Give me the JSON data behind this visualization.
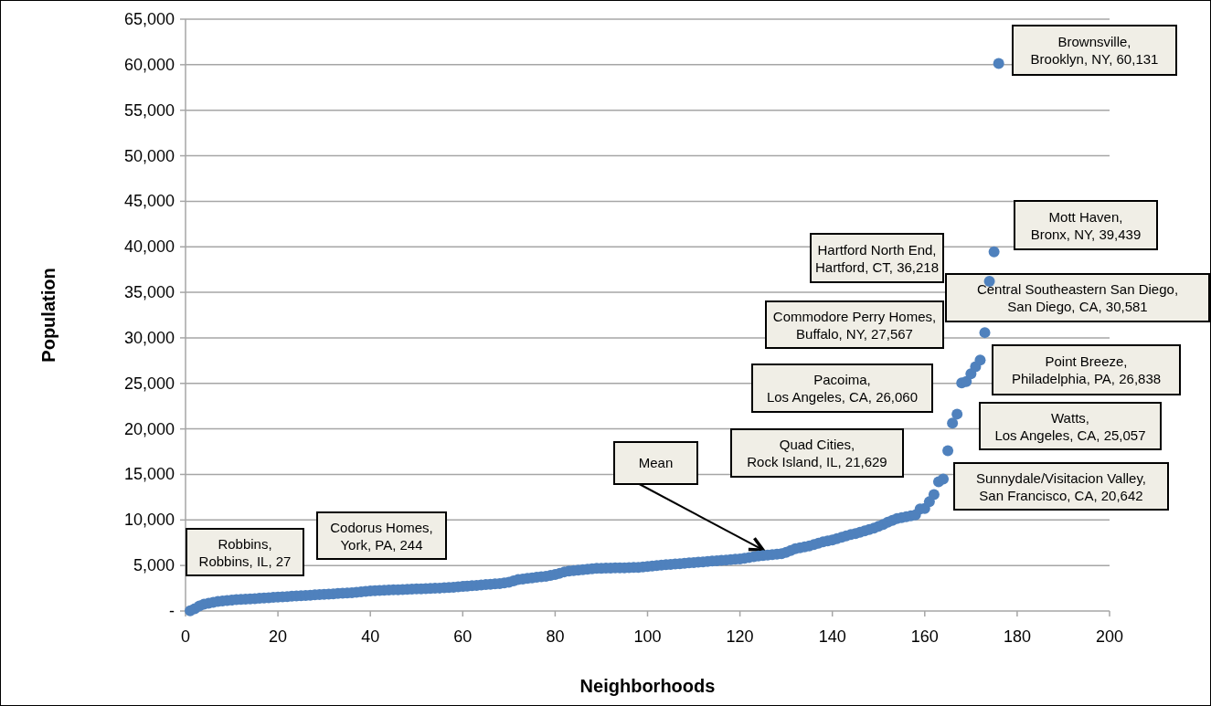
{
  "chart_data": {
    "type": "scatter",
    "xlabel": "Neighborhoods",
    "ylabel": "Population",
    "x": [
      1,
      2,
      3,
      4,
      5,
      6,
      7,
      8,
      9,
      10,
      11,
      12,
      13,
      14,
      15,
      16,
      17,
      18,
      19,
      20,
      21,
      22,
      23,
      24,
      25,
      26,
      27,
      28,
      29,
      30,
      31,
      32,
      33,
      34,
      35,
      36,
      37,
      38,
      39,
      40,
      41,
      42,
      43,
      44,
      45,
      46,
      47,
      48,
      49,
      50,
      51,
      52,
      53,
      54,
      55,
      56,
      57,
      58,
      59,
      60,
      61,
      62,
      63,
      64,
      65,
      66,
      67,
      68,
      69,
      70,
      71,
      72,
      73,
      74,
      75,
      76,
      77,
      78,
      79,
      80,
      81,
      82,
      83,
      84,
      85,
      86,
      87,
      88,
      89,
      90,
      91,
      92,
      93,
      94,
      95,
      96,
      97,
      98,
      99,
      100,
      101,
      102,
      103,
      104,
      105,
      106,
      107,
      108,
      109,
      110,
      111,
      112,
      113,
      114,
      115,
      116,
      117,
      118,
      119,
      120,
      121,
      122,
      123,
      124,
      125,
      126,
      127,
      128,
      129,
      130,
      131,
      132,
      133,
      134,
      135,
      136,
      137,
      138,
      139,
      140,
      141,
      142,
      143,
      144,
      145,
      146,
      147,
      148,
      149,
      150,
      151,
      152,
      153,
      154,
      155,
      156,
      157,
      158,
      159,
      160,
      161,
      162,
      163,
      164,
      165,
      166,
      167,
      168,
      169,
      170,
      171,
      172,
      173,
      174,
      175,
      176
    ],
    "series": [
      {
        "color": "#4f81bd",
        "values": [
          27,
          244,
          550,
          750,
          850,
          950,
          1050,
          1100,
          1150,
          1200,
          1250,
          1280,
          1300,
          1330,
          1360,
          1400,
          1430,
          1460,
          1500,
          1530,
          1560,
          1590,
          1620,
          1650,
          1680,
          1710,
          1740,
          1770,
          1800,
          1830,
          1860,
          1890,
          1920,
          1950,
          1980,
          2010,
          2050,
          2100,
          2150,
          2200,
          2230,
          2260,
          2280,
          2300,
          2320,
          2340,
          2360,
          2380,
          2400,
          2420,
          2440,
          2460,
          2480,
          2500,
          2520,
          2550,
          2580,
          2610,
          2650,
          2700,
          2740,
          2780,
          2820,
          2860,
          2900,
          2940,
          2980,
          3020,
          3080,
          3150,
          3300,
          3450,
          3520,
          3580,
          3640,
          3700,
          3760,
          3820,
          3900,
          4000,
          4150,
          4300,
          4400,
          4450,
          4500,
          4550,
          4600,
          4650,
          4680,
          4700,
          4710,
          4720,
          4730,
          4740,
          4750,
          4760,
          4780,
          4800,
          4850,
          4900,
          4950,
          5000,
          5040,
          5080,
          5120,
          5160,
          5200,
          5240,
          5280,
          5320,
          5360,
          5400,
          5440,
          5480,
          5520,
          5560,
          5600,
          5640,
          5680,
          5720,
          5800,
          5880,
          5960,
          6040,
          6100,
          6150,
          6200,
          6250,
          6300,
          6450,
          6650,
          6850,
          6950,
          7050,
          7150,
          7300,
          7450,
          7600,
          7700,
          7800,
          7950,
          8100,
          8250,
          8400,
          8500,
          8650,
          8800,
          8950,
          9100,
          9300,
          9500,
          9750,
          9950,
          10150,
          10250,
          10350,
          10450,
          10550,
          11200,
          11250,
          12000,
          12800,
          14200,
          14500,
          17600,
          20642,
          21629,
          25057,
          25200,
          26060,
          26838,
          27567,
          30581,
          36218,
          39439,
          60131
        ]
      }
    ],
    "xlim": [
      0,
      200
    ],
    "xticks": [
      0,
      20,
      40,
      60,
      80,
      100,
      120,
      140,
      160,
      180,
      200
    ],
    "ylim": [
      0,
      65000
    ],
    "yticks": [
      {
        "value": 0,
        "label": "-"
      },
      {
        "value": 5000,
        "label": "5,000"
      },
      {
        "value": 10000,
        "label": "10,000"
      },
      {
        "value": 15000,
        "label": "15,000"
      },
      {
        "value": 20000,
        "label": "20,000"
      },
      {
        "value": 25000,
        "label": "25,000"
      },
      {
        "value": 30000,
        "label": "30,000"
      },
      {
        "value": 35000,
        "label": "35,000"
      },
      {
        "value": 40000,
        "label": "40,000"
      },
      {
        "value": 45000,
        "label": "45,000"
      },
      {
        "value": 50000,
        "label": "50,000"
      },
      {
        "value": 55000,
        "label": "55,000"
      },
      {
        "value": 60000,
        "label": "60,000"
      },
      {
        "value": 65000,
        "label": "65,000"
      }
    ],
    "grid": "y",
    "marker": "circle",
    "annotations": [
      "Brownsville, Brooklyn, NY, 60,131",
      "Mott Haven, Bronx, NY, 39,439",
      "Hartford North End, Hartford, CT, 36,218",
      "Central Southeastern San Diego, San Diego, CA, 30,581",
      "Commodore Perry Homes, Buffalo, NY, 27,567",
      "Point Breeze, Philadelphia, PA, 26,838",
      "Pacoima, Los Angeles, CA, 26,060",
      "Watts, Los Angeles, CA, 25,057",
      "Quad Cities, Rock Island, IL, 21,629",
      "Sunnydale/Visitacion Valley, San Francisco, CA, 20,642",
      {
        "text": "Mean",
        "x": 125,
        "y": 6100
      },
      "Codorus Homes, York, PA, 244",
      "Robbins, Robbins, IL, 27"
    ]
  }
}
